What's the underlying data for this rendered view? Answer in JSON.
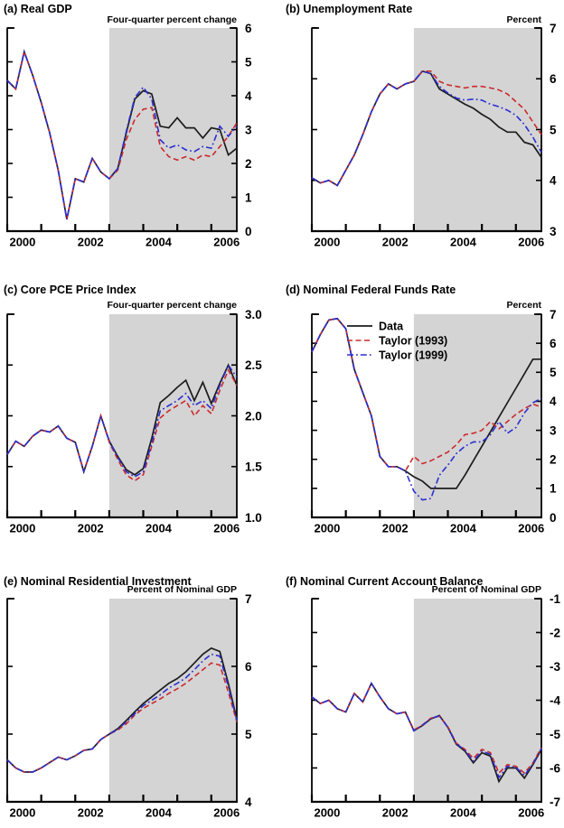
{
  "figure": {
    "background": "#ffffff",
    "x_axis": {
      "x_start": 2000,
      "x_step": 0.25,
      "n_points": 28,
      "tick_years": [
        2000,
        2001,
        2002,
        2003,
        2004,
        2005,
        2006
      ],
      "labels": [
        "2000",
        "2002",
        "2004",
        "2006"
      ]
    },
    "shaded_region": {
      "from": 2003.0,
      "to": 2006.75,
      "color": "#d4d4d5"
    },
    "series_styles": [
      {
        "name": "Data",
        "color": "#1c1c1c",
        "dash": "",
        "width": 1.7
      },
      {
        "name": "Taylor (1993)",
        "color": "#cc2a2a",
        "dash": "6,3.5",
        "width": 1.6
      },
      {
        "name": "Taylor (1999)",
        "color": "#2b2fd0",
        "dash": "7,3,1.8,3",
        "width": 1.6
      }
    ]
  },
  "chart_data": [
    {
      "id": "a",
      "type": "line",
      "title": "(a) Real GDP",
      "unit_label": "Four-quarter percent change",
      "ylim": [
        0,
        6
      ],
      "yticks": [
        6,
        5,
        4,
        3,
        2,
        1,
        0
      ],
      "ytick_labels": [
        "6",
        "5",
        "4",
        "3",
        "2",
        "1",
        "0"
      ],
      "series": [
        {
          "name": "Data",
          "values": [
            4.45,
            4.2,
            5.3,
            4.6,
            3.8,
            2.9,
            1.8,
            0.35,
            1.55,
            1.45,
            2.15,
            1.75,
            1.55,
            1.85,
            2.9,
            3.9,
            4.15,
            4.05,
            3.1,
            3.05,
            3.35,
            3.05,
            3.05,
            2.75,
            3.05,
            3.0,
            2.25,
            2.45
          ]
        },
        {
          "name": "Taylor (1993)",
          "values": [
            4.45,
            4.2,
            5.3,
            4.6,
            3.8,
            2.9,
            1.8,
            0.35,
            1.55,
            1.45,
            2.15,
            1.75,
            1.55,
            1.8,
            2.7,
            3.3,
            3.6,
            3.65,
            2.5,
            2.2,
            2.1,
            2.2,
            2.1,
            2.25,
            2.2,
            2.5,
            2.8,
            3.2
          ]
        },
        {
          "name": "Taylor (1999)",
          "values": [
            4.45,
            4.2,
            5.3,
            4.6,
            3.8,
            2.9,
            1.8,
            0.35,
            1.55,
            1.45,
            2.15,
            1.75,
            1.55,
            1.85,
            2.95,
            3.95,
            4.25,
            3.9,
            2.7,
            2.45,
            2.55,
            2.4,
            2.35,
            2.5,
            2.45,
            3.1,
            2.8,
            3.1
          ]
        }
      ]
    },
    {
      "id": "b",
      "type": "line",
      "title": "(b) Unemployment Rate",
      "unit_label": "Percent",
      "ylim": [
        3,
        7
      ],
      "yticks": [
        7,
        6,
        5,
        4,
        3
      ],
      "ytick_labels": [
        "7",
        "6",
        "5",
        "4",
        "3"
      ],
      "series": [
        {
          "name": "Data",
          "values": [
            4.05,
            3.95,
            4.0,
            3.9,
            4.2,
            4.5,
            4.9,
            5.35,
            5.7,
            5.9,
            5.8,
            5.9,
            5.95,
            6.15,
            6.1,
            5.8,
            5.7,
            5.6,
            5.5,
            5.42,
            5.3,
            5.2,
            5.05,
            4.95,
            4.95,
            4.75,
            4.7,
            4.45
          ]
        },
        {
          "name": "Taylor (1993)",
          "values": [
            4.05,
            3.95,
            4.0,
            3.9,
            4.2,
            4.5,
            4.9,
            5.35,
            5.7,
            5.9,
            5.8,
            5.9,
            5.95,
            6.15,
            6.15,
            5.95,
            5.88,
            5.85,
            5.82,
            5.85,
            5.85,
            5.82,
            5.78,
            5.7,
            5.55,
            5.4,
            5.15,
            4.9
          ]
        },
        {
          "name": "Taylor (1999)",
          "values": [
            4.05,
            3.95,
            4.0,
            3.9,
            4.2,
            4.5,
            4.9,
            5.35,
            5.7,
            5.9,
            5.8,
            5.9,
            5.95,
            6.15,
            6.1,
            5.85,
            5.72,
            5.62,
            5.58,
            5.6,
            5.58,
            5.5,
            5.45,
            5.38,
            5.28,
            5.1,
            4.85,
            4.55
          ]
        }
      ]
    },
    {
      "id": "c",
      "type": "line",
      "title": "(c) Core PCE Price Index",
      "unit_label": "Four-quarter percent change",
      "ylim": [
        1.0,
        3.0
      ],
      "yticks": [
        3.0,
        2.5,
        2.0,
        1.5,
        1.0
      ],
      "ytick_labels": [
        "3.0",
        "2.5",
        "2.0",
        "1.5",
        "1.0"
      ],
      "series": [
        {
          "name": "Data",
          "values": [
            1.62,
            1.75,
            1.7,
            1.8,
            1.86,
            1.84,
            1.9,
            1.78,
            1.74,
            1.45,
            1.7,
            2.0,
            1.75,
            1.6,
            1.47,
            1.42,
            1.48,
            1.78,
            2.13,
            2.2,
            2.28,
            2.35,
            2.15,
            2.33,
            2.12,
            2.32,
            2.5,
            2.3
          ]
        },
        {
          "name": "Taylor (1993)",
          "values": [
            1.62,
            1.75,
            1.7,
            1.8,
            1.86,
            1.84,
            1.9,
            1.78,
            1.74,
            1.45,
            1.7,
            2.0,
            1.74,
            1.57,
            1.42,
            1.36,
            1.42,
            1.7,
            1.98,
            2.05,
            2.1,
            2.15,
            2.0,
            2.1,
            2.02,
            2.25,
            2.45,
            2.3
          ]
        },
        {
          "name": "Taylor (1999)",
          "values": [
            1.62,
            1.75,
            1.7,
            1.8,
            1.86,
            1.84,
            1.9,
            1.78,
            1.74,
            1.45,
            1.7,
            2.0,
            1.75,
            1.59,
            1.45,
            1.4,
            1.45,
            1.73,
            2.05,
            2.1,
            2.15,
            2.22,
            2.1,
            2.15,
            2.07,
            2.3,
            2.5,
            2.38
          ]
        }
      ]
    },
    {
      "id": "d",
      "type": "line",
      "title": "(d) Nominal Federal Funds Rate",
      "unit_label": "Percent",
      "ylim": [
        0,
        7
      ],
      "yticks": [
        7,
        6,
        5,
        4,
        3,
        2,
        1,
        0
      ],
      "ytick_labels": [
        "7",
        "6",
        "5",
        "4",
        "3",
        "2",
        "1",
        "0"
      ],
      "legend": [
        "Data",
        "Taylor (1993)",
        "Taylor (1999)"
      ],
      "series": [
        {
          "name": "Data",
          "values": [
            5.7,
            6.3,
            6.8,
            6.85,
            6.5,
            5.1,
            4.3,
            3.5,
            2.1,
            1.75,
            1.75,
            1.6,
            1.4,
            1.25,
            1.0,
            1.0,
            1.0,
            1.0,
            1.45,
            1.95,
            2.45,
            2.95,
            3.45,
            3.95,
            4.45,
            4.95,
            5.45,
            5.45
          ]
        },
        {
          "name": "Taylor (1993)",
          "values": [
            5.7,
            6.3,
            6.8,
            6.85,
            6.5,
            5.1,
            4.3,
            3.5,
            2.1,
            1.75,
            1.75,
            1.6,
            2.1,
            1.85,
            1.95,
            2.1,
            2.25,
            2.5,
            2.85,
            2.9,
            3.0,
            3.3,
            3.05,
            3.3,
            3.55,
            3.75,
            3.9,
            3.8
          ]
        },
        {
          "name": "Taylor (1999)",
          "values": [
            5.7,
            6.3,
            6.8,
            6.85,
            6.5,
            5.1,
            4.3,
            3.5,
            2.1,
            1.75,
            1.75,
            1.6,
            0.9,
            0.6,
            0.65,
            1.45,
            1.8,
            2.2,
            2.45,
            2.6,
            2.6,
            2.85,
            3.3,
            2.9,
            3.1,
            3.6,
            3.95,
            4.1
          ]
        }
      ]
    },
    {
      "id": "e",
      "type": "line",
      "title": "(e) Nominal Residential Investment",
      "unit_label": "Percent of Nominal GDP",
      "ylim": [
        4,
        7
      ],
      "yticks": [
        7,
        6,
        5,
        4
      ],
      "ytick_labels": [
        "7",
        "6",
        "5",
        "4"
      ],
      "series": [
        {
          "name": "Data",
          "values": [
            4.62,
            4.5,
            4.44,
            4.44,
            4.5,
            4.58,
            4.66,
            4.62,
            4.68,
            4.76,
            4.78,
            4.92,
            5.0,
            5.08,
            5.2,
            5.33,
            5.45,
            5.55,
            5.65,
            5.75,
            5.82,
            5.92,
            6.05,
            6.18,
            6.27,
            6.22,
            5.75,
            5.22
          ]
        },
        {
          "name": "Taylor (1993)",
          "values": [
            4.62,
            4.5,
            4.44,
            4.44,
            4.5,
            4.58,
            4.66,
            4.62,
            4.68,
            4.76,
            4.78,
            4.92,
            5.0,
            5.06,
            5.15,
            5.28,
            5.38,
            5.45,
            5.52,
            5.6,
            5.67,
            5.75,
            5.85,
            5.95,
            6.05,
            6.02,
            5.62,
            5.18
          ]
        },
        {
          "name": "Taylor (1999)",
          "values": [
            4.62,
            4.5,
            4.44,
            4.44,
            4.5,
            4.58,
            4.66,
            4.62,
            4.68,
            4.76,
            4.78,
            4.92,
            5.0,
            5.07,
            5.18,
            5.3,
            5.42,
            5.5,
            5.58,
            5.68,
            5.75,
            5.83,
            5.95,
            6.08,
            6.18,
            6.15,
            5.7,
            5.2
          ]
        }
      ]
    },
    {
      "id": "f",
      "type": "line",
      "title": "(f) Nominal Current Account Balance",
      "unit_label": "Percent of Nominal GDP",
      "ylim": [
        -7,
        -1
      ],
      "yticks": [
        -1,
        -2,
        -3,
        -4,
        -5,
        -6,
        -7
      ],
      "ytick_labels": [
        "-1",
        "-2",
        "-3",
        "-4",
        "-5",
        "-6",
        "-7"
      ],
      "series": [
        {
          "name": "Data",
          "values": [
            -3.9,
            -4.1,
            -4.0,
            -4.25,
            -4.35,
            -3.8,
            -4.05,
            -3.5,
            -3.9,
            -4.25,
            -4.4,
            -4.35,
            -4.9,
            -4.75,
            -4.55,
            -4.45,
            -4.8,
            -5.3,
            -5.5,
            -5.85,
            -5.55,
            -5.65,
            -6.4,
            -6.0,
            -6.0,
            -6.3,
            -5.9,
            -5.45
          ]
        },
        {
          "name": "Taylor (1993)",
          "values": [
            -3.9,
            -4.1,
            -4.0,
            -4.25,
            -4.35,
            -3.8,
            -4.05,
            -3.5,
            -3.9,
            -4.25,
            -4.4,
            -4.35,
            -4.88,
            -4.73,
            -4.53,
            -4.47,
            -4.78,
            -5.27,
            -5.45,
            -5.72,
            -5.45,
            -5.55,
            -6.15,
            -5.9,
            -5.95,
            -6.15,
            -5.85,
            -5.4
          ]
        },
        {
          "name": "Taylor (1999)",
          "values": [
            -3.9,
            -4.1,
            -4.0,
            -4.25,
            -4.35,
            -3.8,
            -4.05,
            -3.5,
            -3.9,
            -4.25,
            -4.4,
            -4.35,
            -4.9,
            -4.74,
            -4.54,
            -4.46,
            -4.8,
            -5.28,
            -5.48,
            -5.8,
            -5.5,
            -5.6,
            -6.28,
            -5.95,
            -5.98,
            -6.22,
            -5.88,
            -5.42
          ]
        }
      ]
    }
  ]
}
